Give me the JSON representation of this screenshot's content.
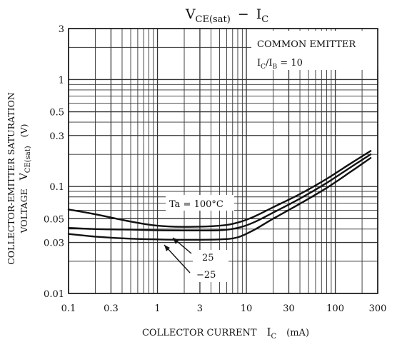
{
  "chart_data": {
    "type": "line",
    "title": "VCE(sat) − IC",
    "title_parts": {
      "main_v": "V",
      "sub_v": "CE(sat)",
      "dash": "−",
      "main_i": "I",
      "sub_i": "C"
    },
    "xlabel": "COLLECTOR CURRENT  IC  (mA)",
    "xlabel_parts": {
      "text": "COLLECTOR CURRENT",
      "sym": "I",
      "sub": "C",
      "unit": "(mA)"
    },
    "ylabel_line1": "COLLECTOR-EMITTER SATURATION",
    "ylabel_line2_parts": {
      "text": "VOLTAGE",
      "sym": "V",
      "sub": "CE(sat)",
      "unit": "(V)"
    },
    "x_scale": "log",
    "y_scale": "log",
    "xlim": [
      0.1,
      300
    ],
    "ylim": [
      0.01,
      3
    ],
    "x_ticks": [
      0.1,
      0.3,
      1,
      3,
      10,
      30,
      100,
      300
    ],
    "x_tick_labels": [
      "0.1",
      "0.3",
      "1",
      "3",
      "10",
      "30",
      "100",
      "300"
    ],
    "y_ticks": [
      0.01,
      0.03,
      0.05,
      0.1,
      0.3,
      0.5,
      1,
      3
    ],
    "y_tick_labels": [
      "0.01",
      "0.03",
      "0.05",
      "0.1",
      "0.3",
      "0.5",
      "1",
      "3"
    ],
    "grid": true,
    "annotations": {
      "condition_line1": "COMMON EMITTER",
      "condition_line2_parts": {
        "sym": "I",
        "sub1": "C",
        "slash": "/I",
        "sub2": "B",
        "rest": " = 10"
      },
      "ta_label": "Ta = 100°C",
      "label_25": "25",
      "label_m25": "−25"
    },
    "series": [
      {
        "label": "Ta = 100°C",
        "x": [
          0.1,
          0.2,
          0.5,
          1,
          2,
          5,
          8,
          12,
          20,
          40,
          80,
          150,
          250
        ],
        "y": [
          0.061,
          0.055,
          0.047,
          0.043,
          0.042,
          0.043,
          0.046,
          0.052,
          0.064,
          0.085,
          0.118,
          0.165,
          0.215
        ]
      },
      {
        "label": "25",
        "x": [
          0.1,
          0.2,
          0.5,
          1,
          2,
          5,
          8,
          12,
          20,
          40,
          80,
          150,
          250
        ],
        "y": [
          0.041,
          0.04,
          0.0395,
          0.039,
          0.0388,
          0.039,
          0.041,
          0.046,
          0.057,
          0.077,
          0.108,
          0.152,
          0.2
        ]
      },
      {
        "label": "−25",
        "x": [
          0.1,
          0.2,
          0.5,
          1,
          2,
          5,
          8,
          12,
          20,
          40,
          80,
          150,
          250
        ],
        "y": [
          0.036,
          0.034,
          0.0325,
          0.032,
          0.0318,
          0.032,
          0.0335,
          0.039,
          0.05,
          0.069,
          0.097,
          0.138,
          0.185
        ]
      }
    ]
  }
}
